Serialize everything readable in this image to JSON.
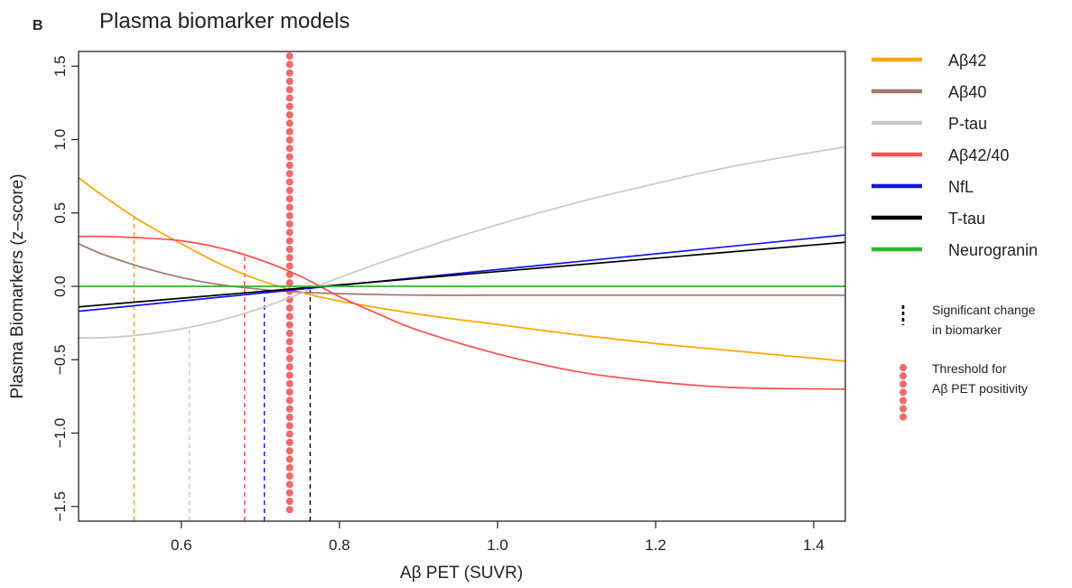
{
  "panel_letter": "B",
  "chart_data": {
    "type": "line",
    "title": "Plasma biomarker models",
    "xlabel": "Aβ PET (SUVR)",
    "ylabel": "Plasma Biomarkers (z–score)",
    "xlim": [
      0.47,
      1.44
    ],
    "ylim": [
      -1.6,
      1.6
    ],
    "x_ticks": [
      0.6,
      0.8,
      1.0,
      1.2,
      1.4
    ],
    "x_tick_labels": [
      "0.6",
      "0.8",
      "1.0",
      "1.2",
      "1.4"
    ],
    "y_ticks": [
      -1.5,
      -1.0,
      -0.5,
      0.0,
      0.5,
      1.0,
      1.5
    ],
    "y_tick_labels": [
      "−1.5",
      "−1.0",
      "−0.5",
      "0.0",
      "0.5",
      "1.0",
      "1.5"
    ],
    "grid": false,
    "legend_position": "right",
    "series": [
      {
        "name": "Aβ42",
        "color": "#FFA500",
        "x": [
          0.47,
          0.5,
          0.55,
          0.6,
          0.65,
          0.7,
          0.75,
          0.8,
          0.9,
          1.0,
          1.1,
          1.2,
          1.3,
          1.44
        ],
        "y": [
          0.74,
          0.62,
          0.44,
          0.29,
          0.15,
          0.04,
          -0.04,
          -0.1,
          -0.19,
          -0.26,
          -0.33,
          -0.39,
          -0.44,
          -0.51
        ],
        "threshold_x": 0.54
      },
      {
        "name": "Aβ40",
        "color": "#A0786A",
        "x": [
          0.47,
          0.5,
          0.55,
          0.6,
          0.65,
          0.7,
          0.75,
          0.8,
          0.9,
          1.0,
          1.2,
          1.44
        ],
        "y": [
          0.29,
          0.22,
          0.13,
          0.06,
          0.01,
          -0.02,
          -0.04,
          -0.05,
          -0.06,
          -0.06,
          -0.06,
          -0.06
        ],
        "threshold_x": null
      },
      {
        "name": "P-tau",
        "color": "#C8C8C8",
        "x": [
          0.47,
          0.5,
          0.55,
          0.6,
          0.65,
          0.7,
          0.75,
          0.8,
          0.9,
          1.0,
          1.1,
          1.2,
          1.3,
          1.44
        ],
        "y": [
          -0.35,
          -0.35,
          -0.33,
          -0.29,
          -0.23,
          -0.15,
          -0.05,
          0.06,
          0.25,
          0.42,
          0.57,
          0.7,
          0.82,
          0.95
        ],
        "threshold_x": 0.61
      },
      {
        "name": "Aβ42/40",
        "color": "#FF4D4D",
        "x": [
          0.47,
          0.5,
          0.55,
          0.6,
          0.65,
          0.7,
          0.75,
          0.8,
          0.85,
          0.9,
          1.0,
          1.1,
          1.2,
          1.3,
          1.44
        ],
        "y": [
          0.34,
          0.34,
          0.33,
          0.31,
          0.26,
          0.18,
          0.07,
          -0.07,
          -0.19,
          -0.3,
          -0.46,
          -0.58,
          -0.65,
          -0.69,
          -0.7
        ],
        "threshold_x": 0.68
      },
      {
        "name": "NfL",
        "color": "#1414E6",
        "x": [
          0.47,
          1.44
        ],
        "y": [
          -0.17,
          0.35
        ],
        "threshold_x": 0.705
      },
      {
        "name": "T-tau",
        "color": "#000000",
        "x": [
          0.47,
          1.44
        ],
        "y": [
          -0.14,
          0.3
        ],
        "threshold_x": 0.763
      },
      {
        "name": "Neurogranin",
        "color": "#2DB82D",
        "x": [
          0.47,
          1.44
        ],
        "y": [
          0.0,
          0.0
        ],
        "threshold_x": null
      }
    ],
    "reference_line": {
      "x": 0.737,
      "color": "#F06A6A"
    },
    "legend_notes": {
      "change_line1": "Significant change",
      "change_line2": "in biomarker",
      "threshold_line1": "Threshold for",
      "threshold_line2": "Aβ PET positivity"
    }
  }
}
